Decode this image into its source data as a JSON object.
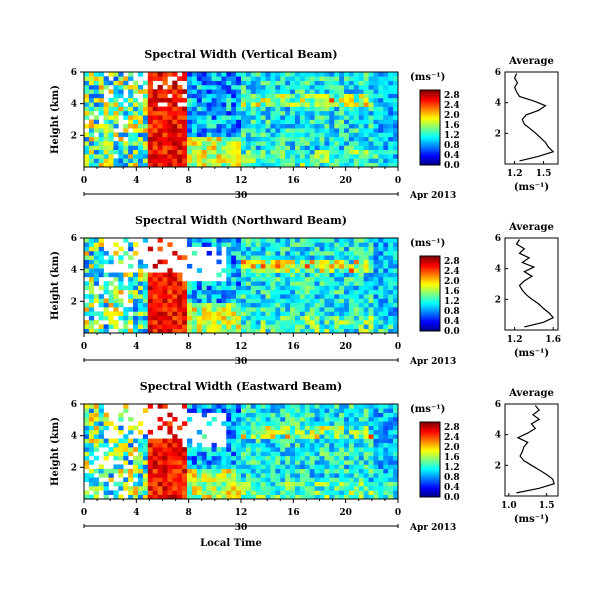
{
  "chart_data": [
    {
      "type": "heatmap",
      "title": "Spectral Width (Vertical Beam)",
      "ylabel": "Height (km)",
      "yticks": [
        "2",
        "4",
        "6"
      ],
      "xticks": [
        "0",
        "4",
        "8",
        "12",
        "16",
        "20",
        "0"
      ],
      "date_tick": "30",
      "date_label": "Apr 2013",
      "colorbar": {
        "unit": "(ms⁻¹)",
        "ticks": [
          "0.0",
          "0.4",
          "0.8",
          "1.2",
          "1.6",
          "2.0",
          "2.4",
          "2.8"
        ],
        "vmin": 0,
        "vmax": 3.0
      },
      "profile": {
        "title": "Average",
        "xticks": [
          "1.2",
          "1.5"
        ],
        "xlim": [
          1.1,
          1.65
        ],
        "unit": "(ms⁻¹)",
        "yticks": [
          "2",
          "4",
          "6"
        ],
        "ylim": [
          0,
          6
        ],
        "h": [
          0.2,
          0.5,
          0.8,
          1.1,
          1.4,
          1.7,
          2.0,
          2.3,
          2.6,
          2.9,
          3.2,
          3.5,
          3.8,
          4.1,
          4.4,
          4.7,
          5.0,
          5.3,
          5.6,
          5.9
        ],
        "v": [
          1.25,
          1.45,
          1.6,
          1.55,
          1.52,
          1.47,
          1.42,
          1.36,
          1.3,
          1.28,
          1.32,
          1.45,
          1.52,
          1.4,
          1.25,
          1.22,
          1.2,
          1.23,
          1.2,
          1.22
        ]
      }
    },
    {
      "type": "heatmap",
      "title": "Spectral Width (Northward Beam)",
      "ylabel": "Height (km)",
      "yticks": [
        "2",
        "4",
        "6"
      ],
      "xticks": [
        "0",
        "4",
        "8",
        "12",
        "16",
        "20",
        "0"
      ],
      "date_tick": "30",
      "date_label": "Apr 2013",
      "colorbar": {
        "unit": "(ms⁻¹)",
        "ticks": [
          "0.0",
          "0.4",
          "0.8",
          "1.2",
          "1.6",
          "2.0",
          "2.4",
          "2.8"
        ],
        "vmin": 0,
        "vmax": 3.0
      },
      "profile": {
        "title": "Average",
        "xticks": [
          "1.2",
          "1.6"
        ],
        "xlim": [
          1.1,
          1.65
        ],
        "unit": "(ms⁻¹)",
        "yticks": [
          "2",
          "4",
          "6"
        ],
        "ylim": [
          0,
          6
        ],
        "h": [
          0.2,
          0.5,
          0.8,
          1.1,
          1.4,
          1.7,
          2.0,
          2.3,
          2.6,
          2.9,
          3.2,
          3.5,
          3.8,
          4.1,
          4.4,
          4.7,
          5.0,
          5.3,
          5.6,
          5.9
        ],
        "v": [
          1.3,
          1.5,
          1.6,
          1.56,
          1.5,
          1.45,
          1.38,
          1.32,
          1.28,
          1.25,
          1.3,
          1.38,
          1.3,
          1.4,
          1.28,
          1.35,
          1.25,
          1.3,
          1.22,
          1.25
        ]
      }
    },
    {
      "type": "heatmap",
      "title": "Spectral Width (Eastward Beam)",
      "ylabel": "Height (km)",
      "yticks": [
        "2",
        "4",
        "6"
      ],
      "xticks": [
        "0",
        "4",
        "8",
        "12",
        "16",
        "20",
        "0"
      ],
      "date_tick": "30",
      "date_label": "Apr 2013",
      "xlabel": "Local Time",
      "colorbar": {
        "unit": "(ms⁻¹)",
        "ticks": [
          "0.0",
          "0.4",
          "0.8",
          "1.2",
          "1.6",
          "2.0",
          "2.4",
          "2.8"
        ],
        "vmin": 0,
        "vmax": 3.0
      },
      "profile": {
        "title": "Average",
        "xticks": [
          "1.0",
          "1.5"
        ],
        "xlim": [
          0.95,
          1.65
        ],
        "unit": "(ms⁻¹)",
        "yticks": [
          "2",
          "4",
          "6"
        ],
        "ylim": [
          0,
          6
        ],
        "h": [
          0.2,
          0.5,
          0.8,
          1.1,
          1.4,
          1.7,
          2.0,
          2.3,
          2.6,
          2.9,
          3.2,
          3.5,
          3.8,
          4.1,
          4.4,
          4.7,
          5.0,
          5.3,
          5.6,
          5.9
        ],
        "v": [
          1.1,
          1.4,
          1.6,
          1.58,
          1.5,
          1.4,
          1.3,
          1.2,
          1.15,
          1.18,
          1.2,
          1.25,
          1.12,
          1.25,
          1.35,
          1.3,
          1.4,
          1.32,
          1.4,
          1.35
        ]
      }
    }
  ]
}
